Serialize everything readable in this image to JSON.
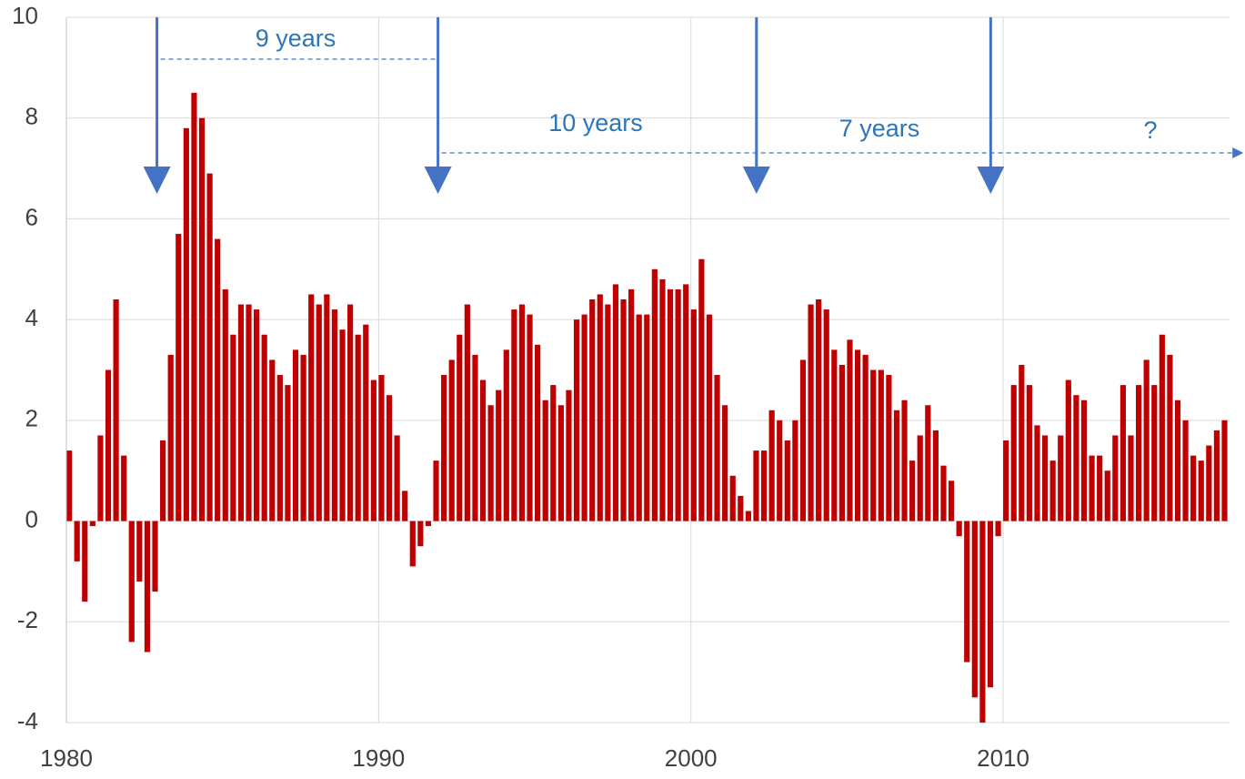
{
  "chart_data": {
    "type": "bar",
    "color": "#c00000",
    "grid": true,
    "xlim": [
      1980,
      2017.25
    ],
    "xticks": [
      1980,
      1990,
      2000,
      2010
    ],
    "ylim": [
      -4,
      10
    ],
    "yticks": [
      -4,
      -2,
      0,
      2,
      4,
      6,
      8,
      10
    ],
    "x": [
      1980,
      1980.25,
      1980.5,
      1980.75,
      1981,
      1981.25,
      1981.5,
      1981.75,
      1982,
      1982.25,
      1982.5,
      1982.75,
      1983,
      1983.25,
      1983.5,
      1983.75,
      1984,
      1984.25,
      1984.5,
      1984.75,
      1985,
      1985.25,
      1985.5,
      1985.75,
      1986,
      1986.25,
      1986.5,
      1986.75,
      1987,
      1987.25,
      1987.5,
      1987.75,
      1988,
      1988.25,
      1988.5,
      1988.75,
      1989,
      1989.25,
      1989.5,
      1989.75,
      1990,
      1990.25,
      1990.5,
      1990.75,
      1991,
      1991.25,
      1991.5,
      1991.75,
      1992,
      1992.25,
      1992.5,
      1992.75,
      1993,
      1993.25,
      1993.5,
      1993.75,
      1994,
      1994.25,
      1994.5,
      1994.75,
      1995,
      1995.25,
      1995.5,
      1995.75,
      1996,
      1996.25,
      1996.5,
      1996.75,
      1997,
      1997.25,
      1997.5,
      1997.75,
      1998,
      1998.25,
      1998.5,
      1998.75,
      1999,
      1999.25,
      1999.5,
      1999.75,
      2000,
      2000.25,
      2000.5,
      2000.75,
      2001,
      2001.25,
      2001.5,
      2001.75,
      2002,
      2002.25,
      2002.5,
      2002.75,
      2003,
      2003.25,
      2003.5,
      2003.75,
      2004,
      2004.25,
      2004.5,
      2004.75,
      2005,
      2005.25,
      2005.5,
      2005.75,
      2006,
      2006.25,
      2006.5,
      2006.75,
      2007,
      2007.25,
      2007.5,
      2007.75,
      2008,
      2008.25,
      2008.5,
      2008.75,
      2009,
      2009.25,
      2009.5,
      2009.75,
      2010,
      2010.25,
      2010.5,
      2010.75,
      2011,
      2011.25,
      2011.5,
      2011.75,
      2012,
      2012.25,
      2012.5,
      2012.75,
      2013,
      2013.25,
      2013.5,
      2013.75,
      2014,
      2014.25,
      2014.5,
      2014.75,
      2015,
      2015.25,
      2015.5,
      2015.75,
      2016,
      2016.25,
      2016.5,
      2016.75,
      2017
    ],
    "values": [
      1.4,
      -0.8,
      -1.6,
      -0.1,
      1.7,
      3.0,
      4.4,
      1.3,
      -2.4,
      -1.2,
      -2.6,
      -1.4,
      1.6,
      3.3,
      5.7,
      7.8,
      8.5,
      8.0,
      6.9,
      5.6,
      4.6,
      3.7,
      4.3,
      4.3,
      4.2,
      3.7,
      3.2,
      2.9,
      2.7,
      3.4,
      3.3,
      4.5,
      4.3,
      4.5,
      4.2,
      3.8,
      4.3,
      3.7,
      3.9,
      2.8,
      2.9,
      2.5,
      1.7,
      0.6,
      -0.9,
      -0.5,
      -0.1,
      1.2,
      2.9,
      3.2,
      3.7,
      4.3,
      3.3,
      2.8,
      2.3,
      2.6,
      3.4,
      4.2,
      4.3,
      4.1,
      3.5,
      2.4,
      2.7,
      2.3,
      2.6,
      4.0,
      4.1,
      4.4,
      4.5,
      4.3,
      4.7,
      4.4,
      4.6,
      4.1,
      4.1,
      5.0,
      4.8,
      4.6,
      4.6,
      4.7,
      4.2,
      5.2,
      4.1,
      2.9,
      2.3,
      0.9,
      0.5,
      0.2,
      1.4,
      1.4,
      2.2,
      2.0,
      1.6,
      2.0,
      3.2,
      4.3,
      4.4,
      4.2,
      3.4,
      3.1,
      3.6,
      3.4,
      3.3,
      3.0,
      3.0,
      2.9,
      2.2,
      2.4,
      1.2,
      1.7,
      2.3,
      1.8,
      1.1,
      0.8,
      -0.3,
      -2.8,
      -3.5,
      -4.0,
      -3.3,
      -0.3,
      1.6,
      2.7,
      3.1,
      2.7,
      1.9,
      1.7,
      1.2,
      1.7,
      2.8,
      2.5,
      2.4,
      1.3,
      1.3,
      1.0,
      1.7,
      2.7,
      1.7,
      2.7,
      3.2,
      2.7,
      3.7,
      3.3,
      2.4,
      2.0,
      1.3,
      1.2,
      1.5,
      1.8,
      2.0
    ],
    "arrows": [
      1982.9,
      1991.9,
      2002.1,
      2009.6
    ],
    "arrow_color": "#4472c4",
    "annotations": [
      "9 years",
      "10 years",
      "7 years",
      "?"
    ]
  }
}
